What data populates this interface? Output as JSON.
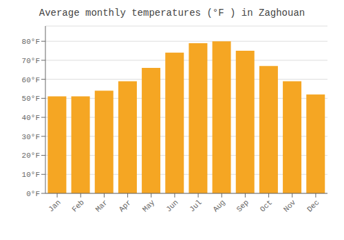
{
  "chart_data": {
    "type": "bar",
    "title": "Average monthly temperatures (°F ) in Zaghouan",
    "categories": [
      "Jan",
      "Feb",
      "Mar",
      "Apr",
      "May",
      "Jun",
      "Jul",
      "Aug",
      "Sep",
      "Oct",
      "Nov",
      "Dec"
    ],
    "values": [
      51,
      51,
      54,
      59,
      66,
      74,
      79,
      80,
      75,
      67,
      59,
      52
    ],
    "color": "#F5A623",
    "ylim": [
      0,
      88
    ],
    "yticks": [
      {
        "value": 0,
        "label": "0°F"
      },
      {
        "value": 10,
        "label": "10°F"
      },
      {
        "value": 20,
        "label": "20°F"
      },
      {
        "value": 30,
        "label": "30°F"
      },
      {
        "value": 40,
        "label": "40°F"
      },
      {
        "value": 50,
        "label": "50°F"
      },
      {
        "value": 60,
        "label": "60°F"
      },
      {
        "value": 70,
        "label": "70°F"
      },
      {
        "value": 80,
        "label": "80°F"
      }
    ],
    "grid": true
  }
}
